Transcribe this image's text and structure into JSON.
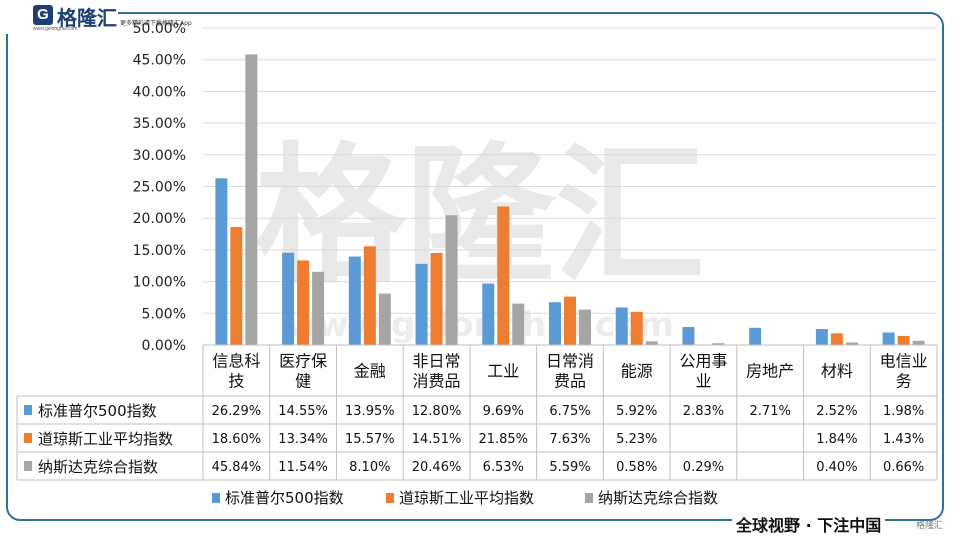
{
  "brand": {
    "name": "格隆汇",
    "url": "www.gelonghui.com",
    "tagline": "更多精彩请下载格隆汇App",
    "logo_letter": "G",
    "corner_mark": "格隆汇",
    "slogan": "全球视野 · 下注中国"
  },
  "watermark": {
    "text": "格隆汇",
    "url": "www.gelonghui.com"
  },
  "colors": {
    "frame": "#2f6f9e",
    "brand": "#1e3f73",
    "grid": "#d9d9d9",
    "table_border": "#bfbfbf",
    "sp500": "#5b9bd5",
    "dow": "#ed7d31",
    "nasdaq": "#a5a5a5"
  },
  "chart_data": {
    "type": "bar",
    "title": "",
    "xlabel": "",
    "ylabel": "",
    "ylim": [
      0,
      50
    ],
    "y_tick_format": "percent_2dp",
    "y_ticks": [
      "0.00%",
      "5.00%",
      "10.00%",
      "15.00%",
      "20.00%",
      "25.00%",
      "30.00%",
      "35.00%",
      "40.00%",
      "45.00%",
      "50.00%"
    ],
    "grid": true,
    "legend_position": "bottom",
    "categories": [
      [
        "信息科",
        "技"
      ],
      [
        "医疗保",
        "健"
      ],
      [
        "金融"
      ],
      [
        "非日常",
        "消费品"
      ],
      [
        "工业"
      ],
      [
        "日常消",
        "费品"
      ],
      [
        "能源"
      ],
      [
        "公用事",
        "业"
      ],
      [
        "房地产"
      ],
      [
        "材料"
      ],
      [
        "电信业",
        "务"
      ]
    ],
    "series": [
      {
        "name": "标准普尔500指数",
        "color": "#5b9bd5",
        "values": [
          26.29,
          14.55,
          13.95,
          12.8,
          9.69,
          6.75,
          5.92,
          2.83,
          2.71,
          2.52,
          1.98
        ],
        "labels": [
          "26.29%",
          "14.55%",
          "13.95%",
          "12.80%",
          "9.69%",
          "6.75%",
          "5.92%",
          "2.83%",
          "2.71%",
          "2.52%",
          "1.98%"
        ]
      },
      {
        "name": "道琼斯工业平均指数",
        "color": "#ed7d31",
        "values": [
          18.6,
          13.34,
          15.57,
          14.51,
          21.85,
          7.63,
          5.23,
          null,
          null,
          1.84,
          1.43
        ],
        "labels": [
          "18.60%",
          "13.34%",
          "15.57%",
          "14.51%",
          "21.85%",
          "7.63%",
          "5.23%",
          "",
          "",
          "1.84%",
          "1.43%"
        ]
      },
      {
        "name": "纳斯达克综合指数",
        "color": "#a5a5a5",
        "values": [
          45.84,
          11.54,
          8.1,
          20.46,
          6.53,
          5.59,
          0.58,
          0.29,
          null,
          0.4,
          0.66
        ],
        "labels": [
          "45.84%",
          "11.54%",
          "8.10%",
          "20.46%",
          "6.53%",
          "5.59%",
          "0.58%",
          "0.29%",
          "",
          "0.40%",
          "0.66%"
        ]
      }
    ]
  }
}
